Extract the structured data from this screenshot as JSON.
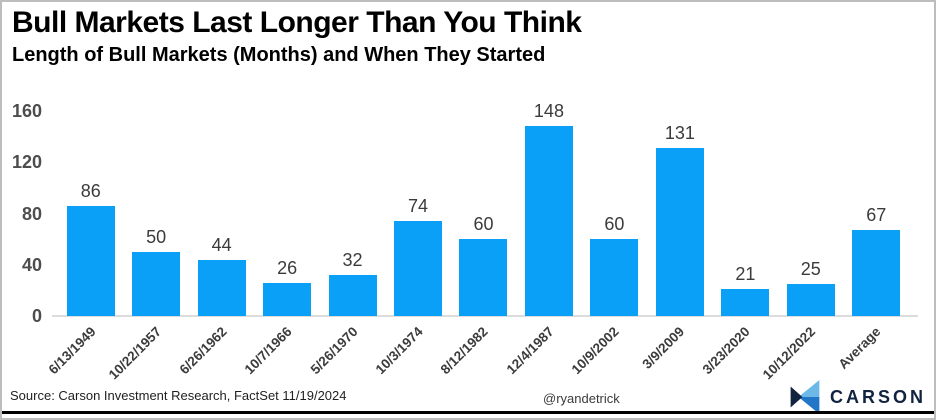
{
  "header": {
    "title": "Bull Markets Last Longer Than You Think",
    "subtitle": "Length of Bull Markets (Months) and When They Started"
  },
  "footer": {
    "source": "Source: Carson Investment Research, FactSet 11/19/2024",
    "handle": "@ryandetrick",
    "logo_text": "CARSON"
  },
  "colors": {
    "bar": "#0aa0f7",
    "value_label": "#3b3b3b",
    "tick_label": "#4d4d4d",
    "axis_line": "#dcdcdc",
    "logo_navy": "#12233f",
    "logo_light_blue": "#6cb9e8",
    "logo_mid_blue": "#2176c7"
  },
  "chart_data": {
    "type": "bar",
    "title": "Bull Markets Last Longer Than You Think",
    "subtitle": "Length of Bull Markets (Months) and When They Started",
    "xlabel": "",
    "ylabel": "",
    "categories": [
      "6/13/1949",
      "10/22/1957",
      "6/26/1962",
      "10/7/1966",
      "5/26/1970",
      "10/3/1974",
      "8/12/1982",
      "12/4/1987",
      "10/9/2002",
      "3/9/2009",
      "3/23/2020",
      "10/12/2022",
      "Average"
    ],
    "values": [
      86,
      50,
      44,
      26,
      32,
      74,
      60,
      148,
      60,
      131,
      21,
      25,
      67
    ],
    "ylim": [
      0,
      160
    ],
    "yticks": [
      0,
      40,
      80,
      120,
      160
    ],
    "grid": false,
    "legend": false
  }
}
